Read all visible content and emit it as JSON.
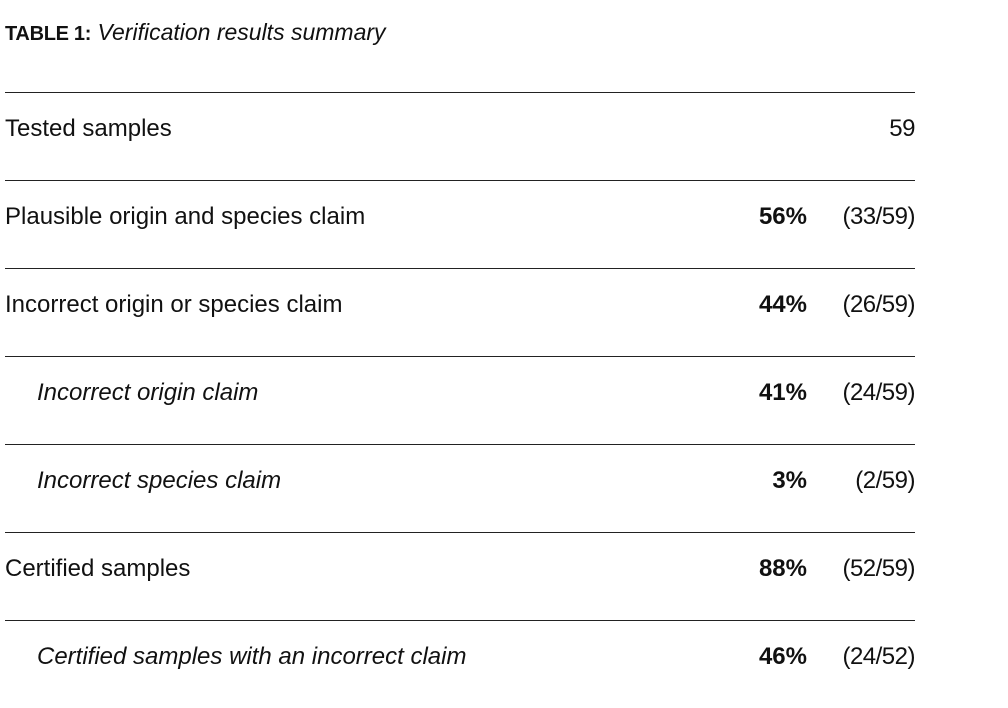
{
  "caption": {
    "label": "TABLE 1:",
    "title": "Verification results summary"
  },
  "rows": [
    {
      "label": "Tested samples",
      "percent": "",
      "count": "59",
      "indent": false
    },
    {
      "label": "Plausible origin and species claim",
      "percent": "56%",
      "count": "(33/59)",
      "indent": false
    },
    {
      "label": "Incorrect origin or species claim",
      "percent": "44%",
      "count": "(26/59)",
      "indent": false
    },
    {
      "label": "Incorrect origin claim",
      "percent": "41%",
      "count": "(24/59)",
      "indent": true
    },
    {
      "label": "Incorrect species claim",
      "percent": "3%",
      "count": "(2/59)",
      "indent": true
    },
    {
      "label": "Certified samples",
      "percent": "88%",
      "count": "(52/59)",
      "indent": false
    },
    {
      "label": "Certified samples with an incorrect claim",
      "percent": "46%",
      "count": "(24/52)",
      "indent": true
    }
  ]
}
